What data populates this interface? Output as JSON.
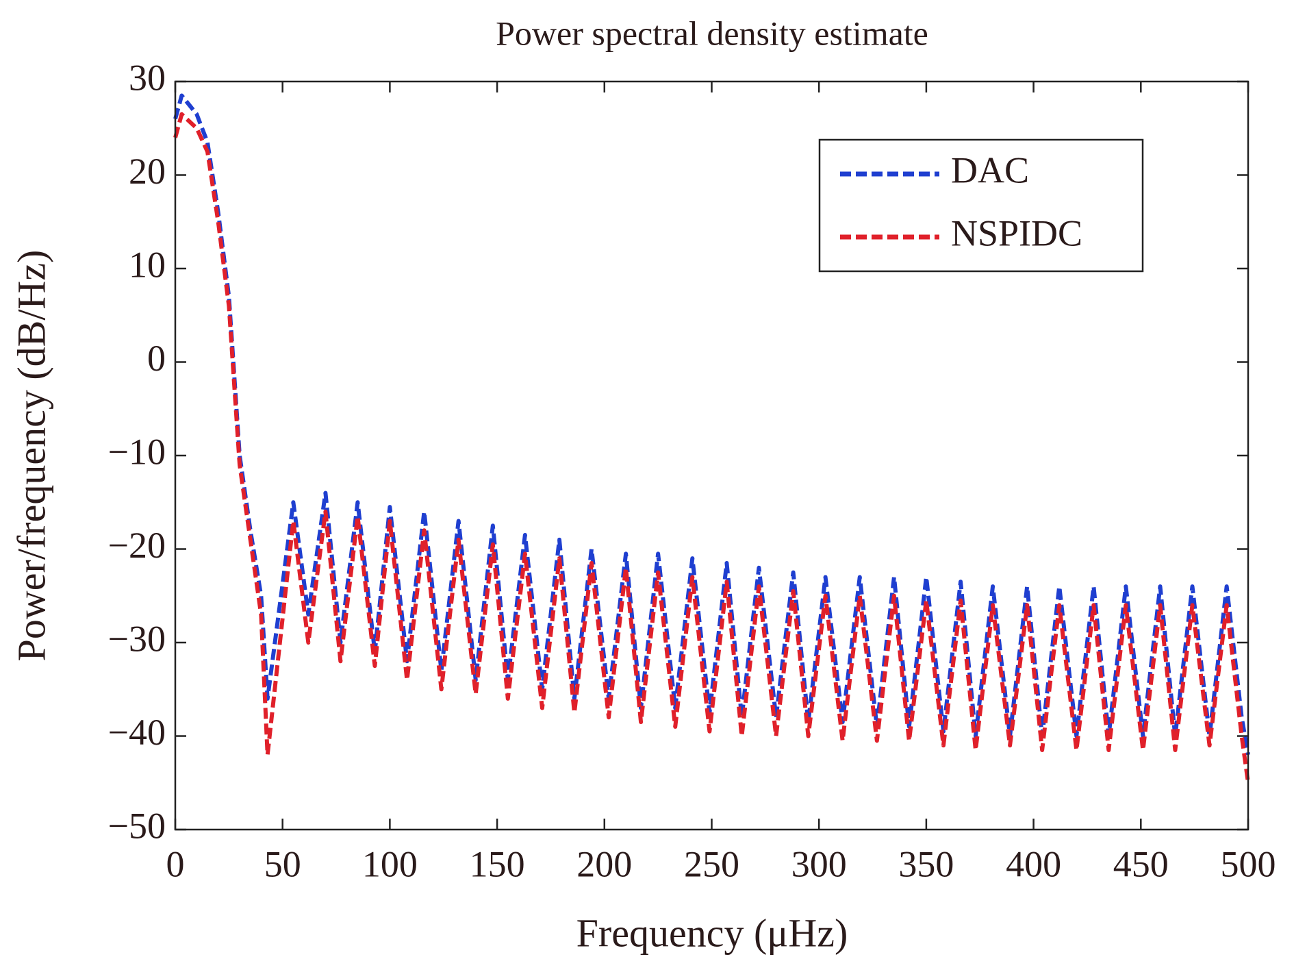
{
  "chart_data": {
    "type": "line",
    "title": "Power spectral density estimate",
    "x_label": "Frequency (μHz)",
    "y_label": "Power/frequency (dB/Hz)",
    "x": [
      0,
      3,
      10,
      15,
      20,
      25,
      30,
      35,
      40,
      43,
      55,
      62,
      70,
      77,
      85,
      93,
      100,
      108,
      116,
      124,
      132,
      140,
      148,
      155,
      163,
      171,
      179,
      186,
      194,
      202,
      210,
      217,
      225,
      233,
      241,
      249,
      257,
      264,
      272,
      280,
      288,
      295,
      303,
      311,
      319,
      327,
      335,
      342,
      350,
      358,
      366,
      373,
      381,
      389,
      397,
      404,
      412,
      420,
      428,
      435,
      443,
      451,
      459,
      466,
      474,
      482,
      490,
      497,
      500
    ],
    "series": [
      {
        "name": "DAC",
        "color": "#1f3fd0",
        "values": [
          26,
          28.5,
          26.5,
          23.5,
          16,
          7,
          -10,
          -18,
          -25,
          -36,
          -15,
          -27,
          -14,
          -30,
          -15,
          -31,
          -15.5,
          -32,
          -16,
          -33,
          -17,
          -34,
          -17.5,
          -34,
          -18.5,
          -35,
          -19,
          -36,
          -20,
          -36,
          -20.5,
          -37,
          -20.5,
          -37,
          -21,
          -37.5,
          -21.5,
          -38,
          -22,
          -38,
          -22.5,
          -38.5,
          -23,
          -38.5,
          -23,
          -39,
          -23,
          -39,
          -23,
          -39.5,
          -23.5,
          -40,
          -24,
          -40,
          -24,
          -40,
          -24,
          -40,
          -24,
          -40,
          -24,
          -40,
          -24,
          -40,
          -24,
          -40,
          -24,
          -38,
          -42
        ]
      },
      {
        "name": "NSPIDC",
        "color": "#e0202a",
        "values": [
          24,
          26.5,
          25,
          22.5,
          15,
          6,
          -11,
          -19,
          -27,
          -42,
          -17,
          -30,
          -16,
          -32,
          -16.5,
          -32.5,
          -17,
          -34,
          -18,
          -35,
          -19,
          -35.5,
          -19.5,
          -36,
          -20.5,
          -37,
          -21,
          -37.5,
          -21.5,
          -38,
          -22,
          -38.5,
          -22.5,
          -39,
          -23,
          -39.5,
          -23.5,
          -40,
          -24,
          -40,
          -24.5,
          -40,
          -25,
          -40.5,
          -25,
          -40.5,
          -25,
          -40.5,
          -25.5,
          -41,
          -25.5,
          -41.5,
          -26,
          -41,
          -26,
          -41.5,
          -26,
          -41.5,
          -26,
          -41.5,
          -26,
          -41.5,
          -26,
          -41.5,
          -26,
          -41,
          -26,
          -40,
          -45
        ]
      }
    ],
    "xlim": [
      0,
      500
    ],
    "xticks": [
      0,
      50,
      100,
      150,
      200,
      250,
      300,
      350,
      400,
      450,
      500
    ],
    "ylim": [
      -50,
      30
    ],
    "yticks": [
      {
        "value": -50,
        "label": "−50"
      },
      {
        "value": -40,
        "label": "−40"
      },
      {
        "value": -30,
        "label": "−30"
      },
      {
        "value": -20,
        "label": "−20"
      },
      {
        "value": -10,
        "label": "−10"
      },
      0,
      10,
      20,
      30
    ],
    "legend": "upper right",
    "grid": false
  }
}
